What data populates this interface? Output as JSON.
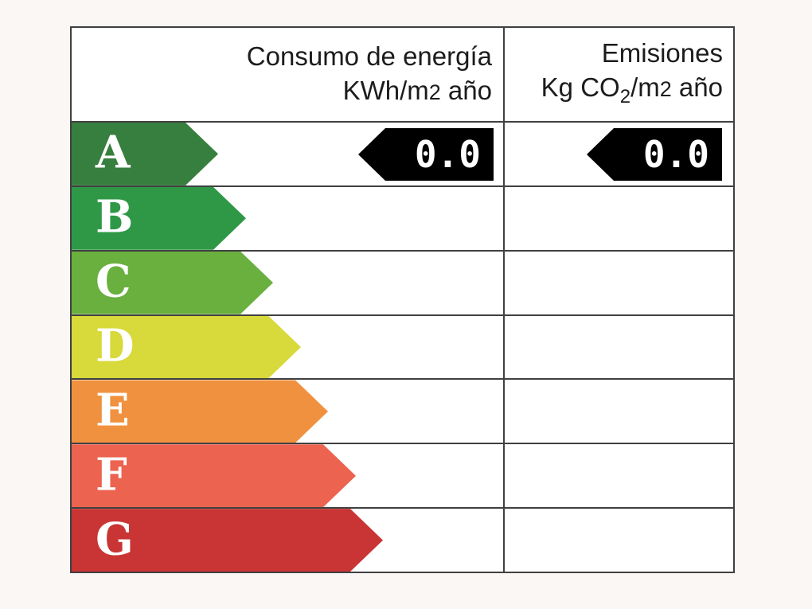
{
  "header": {
    "consumption": {
      "title": "Consumo de energía",
      "unit_prefix": "KWh/m",
      "unit_exponent": "2",
      "unit_suffix": " año"
    },
    "emissions": {
      "title": "Emisiones",
      "unit_prefix": "Kg CO",
      "unit_subscript": "2",
      "unit_mid": "/m",
      "unit_exponent": "2",
      "unit_suffix": " año"
    }
  },
  "ratings": [
    {
      "letter": "A",
      "color": "#377f3f"
    },
    {
      "letter": "B",
      "color": "#2f9847"
    },
    {
      "letter": "C",
      "color": "#69b03f"
    },
    {
      "letter": "D",
      "color": "#d8d93a"
    },
    {
      "letter": "E",
      "color": "#f0913f"
    },
    {
      "letter": "F",
      "color": "#ec6350"
    },
    {
      "letter": "G",
      "color": "#c93434"
    }
  ],
  "indicators": {
    "selected_rating": "A",
    "consumption_value": "0.0",
    "emissions_value": "0.0",
    "arrow_color": "#000000"
  },
  "border_color": "#404040",
  "chart_data": {
    "type": "bar",
    "title": "",
    "categories": [
      "A",
      "B",
      "C",
      "D",
      "E",
      "F",
      "G"
    ],
    "columns": [
      "Consumo de energía KWh/m2 año",
      "Emisiones Kg CO2/m2 año"
    ],
    "selected_category": "A",
    "values": [
      {
        "column": "Consumo de energía KWh/m2 año",
        "value": 0.0
      },
      {
        "column": "Emisiones Kg CO2/m2 año",
        "value": 0.0
      }
    ],
    "bar_colors": [
      "#377f3f",
      "#2f9847",
      "#69b03f",
      "#d8d93a",
      "#f0913f",
      "#ec6350",
      "#c93434"
    ],
    "legend_position": "none",
    "grid": true
  }
}
